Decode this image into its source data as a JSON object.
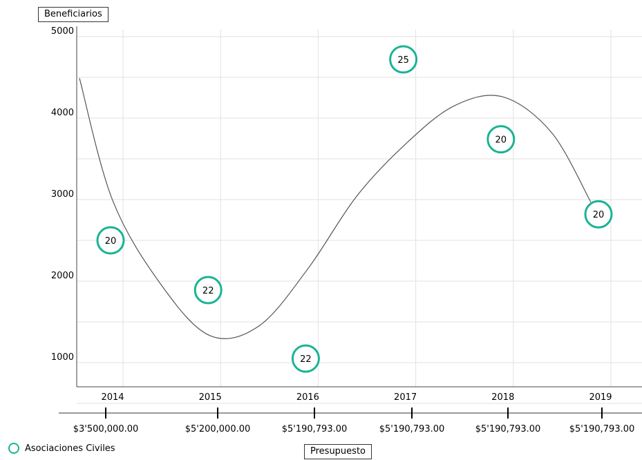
{
  "chart_data": {
    "type": "scatter",
    "ylabel": "Beneficiarios",
    "xlabel": "Presupuesto",
    "ylim": [
      500,
      5000
    ],
    "yticks": [
      1000,
      2000,
      3000,
      4000,
      5000
    ],
    "grid": true,
    "legend_position": "bottom-left",
    "categories": [
      "2014",
      "2015",
      "2016",
      "2017",
      "2018",
      "2019"
    ],
    "budgets": [
      "$3'500,000.00",
      "$5'200,000.00",
      "$5'190,793.00",
      "$5'190,793.00",
      "$5'190,793.00",
      "$5'190,793.00"
    ],
    "series": [
      {
        "name": "Asociaciones Civiles",
        "color": "#1ab394",
        "marker": "open-circle",
        "y": [
          2500,
          1890,
          1050,
          4720,
          3740,
          2820
        ],
        "labels": [
          20,
          22,
          22,
          25,
          20,
          20
        ]
      }
    ],
    "trend_line": {
      "color": "#555555",
      "x": [
        2013.66,
        2014.0,
        2014.5,
        2015.0,
        2015.5,
        2016.0,
        2016.5,
        2017.0,
        2017.5,
        2018.0,
        2018.5,
        2018.9
      ],
      "y": [
        4490,
        2990,
        1950,
        1330,
        1450,
        2150,
        3040,
        3680,
        4150,
        4260,
        3820,
        2970
      ]
    }
  }
}
